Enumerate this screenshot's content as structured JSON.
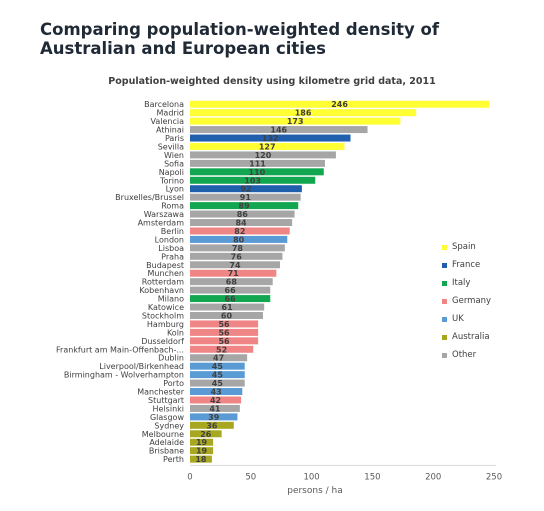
{
  "page": {
    "title": "Comparing population-weighted density of Australian and European cities"
  },
  "chart_data": {
    "type": "bar",
    "orientation": "horizontal",
    "title": "Population-weighted density using kilometre grid data, 2011",
    "xlabel": "persons / ha",
    "ylabel": "",
    "xlim": [
      0,
      250
    ],
    "xticks": [
      "0",
      "50",
      "100",
      "150",
      "200",
      "250"
    ],
    "grid": false,
    "legend_position": "right",
    "groups": [
      {
        "name": "Spain",
        "color": "#ffff33"
      },
      {
        "name": "France",
        "color": "#1f5fad"
      },
      {
        "name": "Italy",
        "color": "#12a650"
      },
      {
        "name": "Germany",
        "color": "#f08585"
      },
      {
        "name": "UK",
        "color": "#5b9bd5"
      },
      {
        "name": "Australia",
        "color": "#a8a820"
      },
      {
        "name": "Other",
        "color": "#a6a6a6"
      }
    ],
    "categories": [
      "Barcelona",
      "Madrid",
      "Valencia",
      "Athinai",
      "Paris",
      "Sevilla",
      "Wien",
      "Sofia",
      "Napoli",
      "Torino",
      "Lyon",
      "Bruxelles/Brussel",
      "Roma",
      "Warszawa",
      "Amsterdam",
      "Berlin",
      "London",
      "Lisboa",
      "Praha",
      "Budapest",
      "Munchen",
      "Rotterdam",
      "Kobenhavn",
      "Milano",
      "Katowice",
      "Stockholm",
      "Hamburg",
      "Koln",
      "Dusseldorf",
      "Frankfurt am Main-Offenbach-...",
      "Dublin",
      "Liverpool/Birkenhead",
      "Birmingham - Wolverhampton",
      "Porto",
      "Manchester",
      "Stuttgart",
      "Helsinki",
      "Glasgow",
      "Sydney",
      "Melbourne",
      "Adelaide",
      "Brisbane",
      "Perth"
    ],
    "values": [
      246,
      186,
      173,
      146,
      132,
      127,
      120,
      111,
      110,
      103,
      92,
      91,
      89,
      86,
      84,
      82,
      80,
      78,
      76,
      74,
      71,
      68,
      66,
      66,
      61,
      60,
      56,
      56,
      56,
      52,
      47,
      45,
      45,
      45,
      43,
      42,
      41,
      39,
      36,
      26,
      19,
      19,
      18
    ],
    "value_labels": [
      "246",
      "186",
      "173",
      "146",
      "132",
      "127",
      "120",
      "111",
      "110",
      "103",
      "92",
      "91",
      "89",
      "86",
      "84",
      "82",
      "80",
      "78",
      "76",
      "74",
      "71",
      "68",
      "66",
      "66",
      "61",
      "60",
      "56",
      "56",
      "56",
      "52",
      "47",
      "45",
      "45",
      "45",
      "43",
      "42",
      "41",
      "39",
      "36",
      "26",
      "19",
      "19",
      "18"
    ],
    "group_of": [
      "Spain",
      "Spain",
      "Spain",
      "Other",
      "France",
      "Spain",
      "Other",
      "Other",
      "Italy",
      "Italy",
      "France",
      "Other",
      "Italy",
      "Other",
      "Other",
      "Germany",
      "UK",
      "Other",
      "Other",
      "Other",
      "Germany",
      "Other",
      "Other",
      "Italy",
      "Other",
      "Other",
      "Germany",
      "Germany",
      "Germany",
      "Germany",
      "Other",
      "UK",
      "UK",
      "Other",
      "UK",
      "Germany",
      "Other",
      "UK",
      "Australia",
      "Australia",
      "Australia",
      "Australia",
      "Australia"
    ]
  }
}
